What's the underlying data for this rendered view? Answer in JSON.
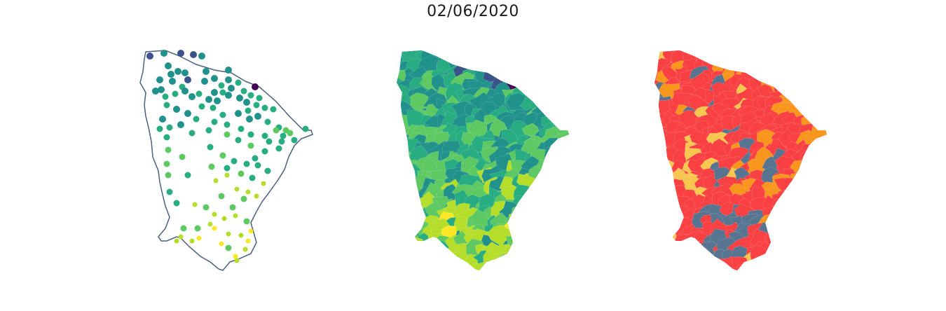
{
  "title": "02/06/2020",
  "panels": [
    {
      "id": "points",
      "kind": "point-map"
    },
    {
      "id": "choropleth-continuous",
      "kind": "choropleth",
      "palette": "viridis"
    },
    {
      "id": "choropleth-categorical",
      "kind": "choropleth",
      "palette": [
        "#577590",
        "#f94144",
        "#f8961e",
        "#f9c74f"
      ]
    }
  ],
  "colors": {
    "outline": "#4a6080",
    "viridis": [
      "#440154",
      "#3b528b",
      "#21918c",
      "#27ad81",
      "#5ec962",
      "#b5de2b",
      "#fde725"
    ],
    "categories": {
      "slate": "#577590",
      "red": "#f94144",
      "orange": "#f8961e",
      "yellow": "#f9c74f"
    }
  }
}
